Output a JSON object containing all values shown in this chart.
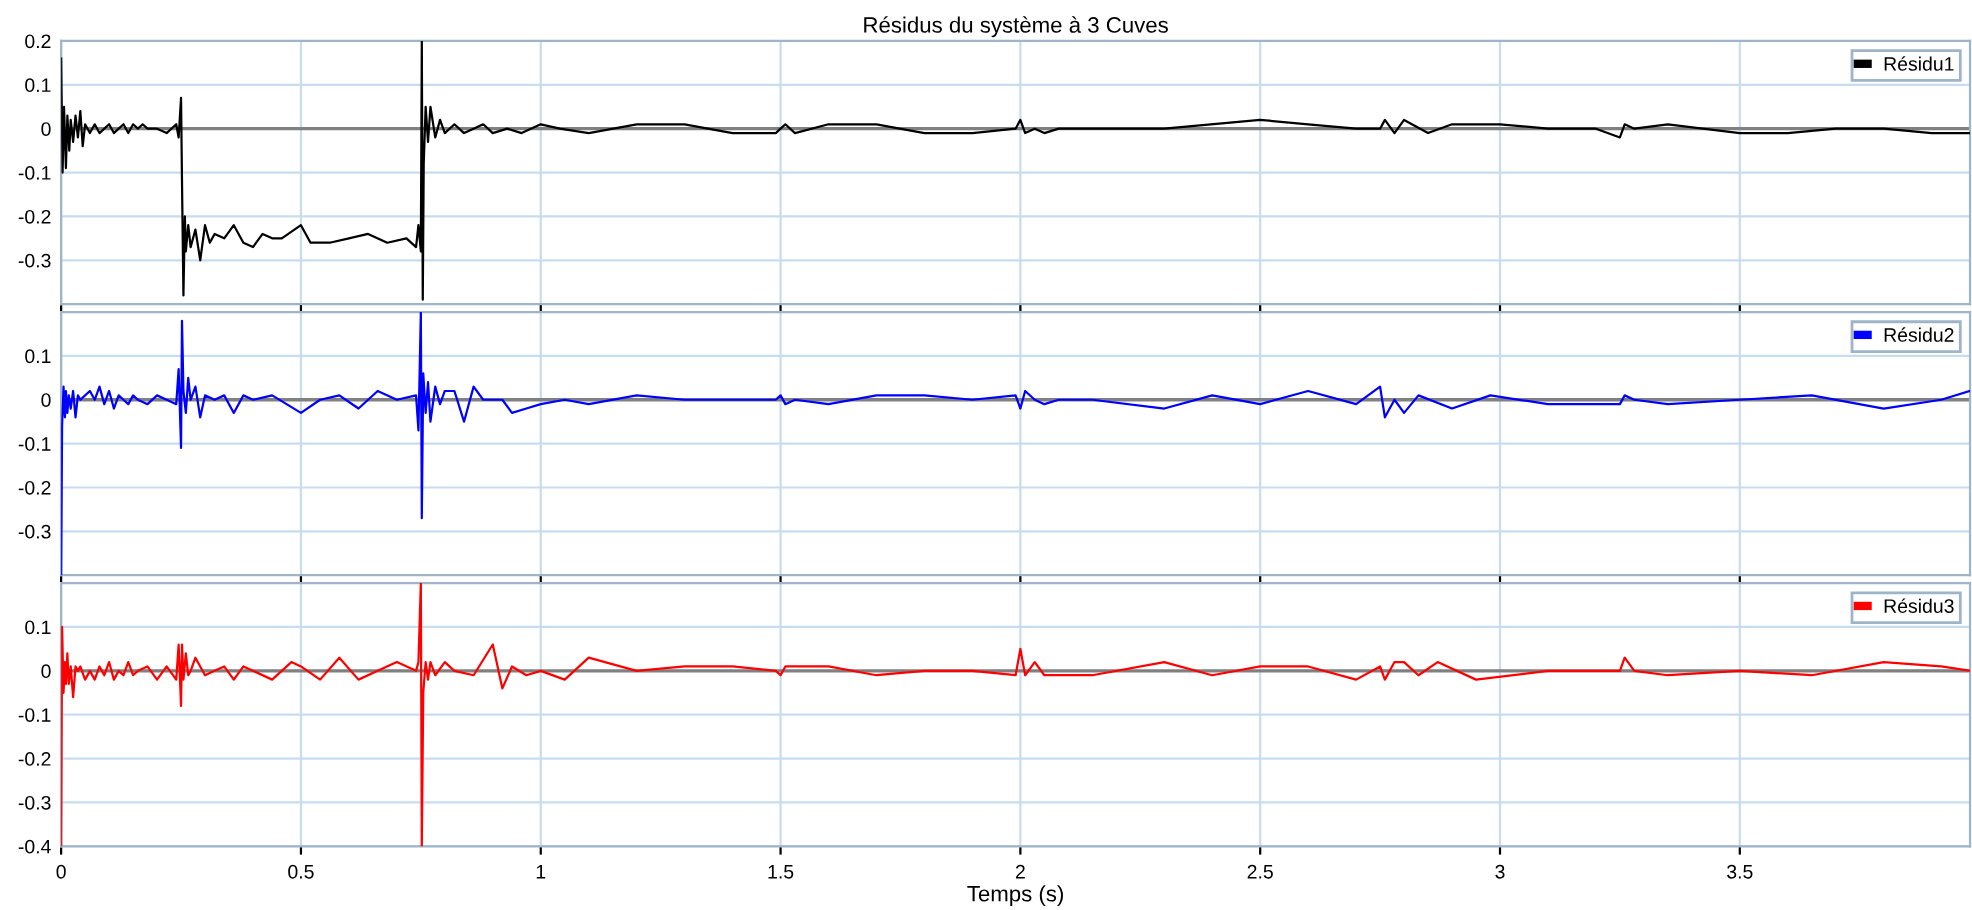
{
  "chart_data": [
    {
      "type": "line",
      "title": "Résidus du système à 3 Cuves",
      "xlim": [
        0,
        3.98
      ],
      "xticks": [
        0,
        0.5,
        1,
        1.5,
        2,
        2.5,
        3,
        3.5
      ],
      "ylim": [
        -0.4,
        0.2
      ],
      "yticks": [
        -0.3,
        -0.2,
        -0.1,
        0,
        0.1,
        0.2
      ],
      "tick_labels": "y",
      "grid": true,
      "legend": "top right",
      "ref_lines": [
        {
          "axis": "y",
          "value": 0,
          "color": "#808080"
        }
      ],
      "series": [
        {
          "name": "Résidu1",
          "color": "#000000",
          "x": [
            0,
            0.003,
            0.006,
            0.01,
            0.013,
            0.017,
            0.02,
            0.025,
            0.03,
            0.035,
            0.04,
            0.045,
            0.05,
            0.06,
            0.07,
            0.08,
            0.09,
            0.1,
            0.11,
            0.12,
            0.13,
            0.14,
            0.15,
            0.16,
            0.17,
            0.18,
            0.2,
            0.22,
            0.24,
            0.245,
            0.25,
            0.252,
            0.255,
            0.258,
            0.26,
            0.265,
            0.27,
            0.28,
            0.29,
            0.3,
            0.31,
            0.32,
            0.34,
            0.36,
            0.38,
            0.4,
            0.42,
            0.44,
            0.46,
            0.5,
            0.52,
            0.56,
            0.6,
            0.64,
            0.68,
            0.72,
            0.74,
            0.745,
            0.75,
            0.752,
            0.754,
            0.756,
            0.76,
            0.765,
            0.77,
            0.78,
            0.79,
            0.8,
            0.82,
            0.84,
            0.86,
            0.88,
            0.9,
            0.93,
            0.96,
            1.0,
            1.04,
            1.1,
            1.2,
            1.3,
            1.4,
            1.49,
            1.5,
            1.51,
            1.53,
            1.6,
            1.7,
            1.8,
            1.9,
            1.99,
            2.0,
            2.01,
            2.03,
            2.05,
            2.08,
            2.15,
            2.3,
            2.5,
            2.6,
            2.7,
            2.75,
            2.76,
            2.78,
            2.8,
            2.85,
            2.9,
            3.0,
            3.1,
            3.2,
            3.25,
            3.26,
            3.28,
            3.35,
            3.5,
            3.6,
            3.7,
            3.8,
            3.9,
            3.98
          ],
          "values": [
            0.16,
            -0.1,
            0.05,
            -0.09,
            0.03,
            -0.05,
            0.02,
            -0.03,
            0.03,
            -0.02,
            0.04,
            -0.04,
            0.01,
            -0.01,
            0.01,
            -0.01,
            0.0,
            0.01,
            -0.01,
            0.0,
            0.01,
            -0.01,
            0.01,
            0.0,
            0.01,
            0.0,
            0.0,
            -0.01,
            0.01,
            -0.02,
            0.07,
            -0.12,
            -0.38,
            -0.2,
            -0.28,
            -0.22,
            -0.27,
            -0.23,
            -0.3,
            -0.22,
            -0.26,
            -0.24,
            -0.25,
            -0.22,
            -0.26,
            -0.27,
            -0.24,
            -0.25,
            -0.25,
            -0.22,
            -0.26,
            -0.26,
            -0.25,
            -0.24,
            -0.26,
            -0.25,
            -0.27,
            -0.22,
            -0.28,
            0.2,
            -0.39,
            -0.08,
            0.05,
            -0.03,
            0.05,
            -0.02,
            0.02,
            -0.01,
            0.01,
            -0.01,
            0.0,
            0.01,
            -0.01,
            0.0,
            -0.01,
            0.01,
            0.0,
            -0.01,
            0.01,
            0.01,
            -0.01,
            -0.01,
            0.0,
            0.01,
            -0.01,
            0.01,
            0.01,
            -0.01,
            -0.01,
            0.0,
            0.02,
            -0.01,
            0.0,
            -0.01,
            0.0,
            0.0,
            0.0,
            0.02,
            0.01,
            0.0,
            0.0,
            0.02,
            -0.01,
            0.02,
            -0.01,
            0.01,
            0.01,
            0.0,
            0.0,
            -0.02,
            0.01,
            0.0,
            0.01,
            -0.01,
            -0.01,
            0.0,
            0.0,
            -0.01,
            -0.01
          ]
        }
      ]
    },
    {
      "type": "line",
      "xlim": [
        0,
        3.98
      ],
      "xticks": [
        0,
        0.5,
        1,
        1.5,
        2,
        2.5,
        3,
        3.5
      ],
      "ylim": [
        -0.4,
        0.2
      ],
      "yticks": [
        -0.3,
        -0.2,
        -0.1,
        0,
        0.1
      ],
      "tick_labels": "y",
      "grid": true,
      "legend": "top right",
      "ref_lines": [
        {
          "axis": "y",
          "value": 0,
          "color": "#808080"
        }
      ],
      "series": [
        {
          "name": "Résidu2",
          "color": "#0000ff",
          "x": [
            0,
            0.002,
            0.005,
            0.008,
            0.01,
            0.013,
            0.016,
            0.02,
            0.025,
            0.03,
            0.035,
            0.04,
            0.05,
            0.06,
            0.07,
            0.08,
            0.09,
            0.1,
            0.11,
            0.12,
            0.13,
            0.14,
            0.15,
            0.16,
            0.18,
            0.2,
            0.22,
            0.24,
            0.245,
            0.25,
            0.252,
            0.255,
            0.26,
            0.265,
            0.27,
            0.28,
            0.29,
            0.3,
            0.32,
            0.34,
            0.36,
            0.38,
            0.4,
            0.44,
            0.5,
            0.54,
            0.58,
            0.62,
            0.66,
            0.7,
            0.74,
            0.745,
            0.75,
            0.752,
            0.755,
            0.76,
            0.765,
            0.77,
            0.78,
            0.79,
            0.8,
            0.82,
            0.84,
            0.86,
            0.88,
            0.9,
            0.92,
            0.94,
            0.97,
            1.0,
            1.05,
            1.1,
            1.2,
            1.3,
            1.4,
            1.49,
            1.5,
            1.51,
            1.53,
            1.6,
            1.7,
            1.8,
            1.9,
            1.99,
            2.0,
            2.01,
            2.03,
            2.05,
            2.08,
            2.15,
            2.3,
            2.4,
            2.5,
            2.6,
            2.7,
            2.75,
            2.76,
            2.78,
            2.8,
            2.83,
            2.9,
            2.98,
            3.1,
            3.25,
            3.26,
            3.28,
            3.35,
            3.5,
            3.65,
            3.8,
            3.92,
            3.98
          ],
          "values": [
            -0.4,
            -0.06,
            0.03,
            -0.04,
            0.02,
            -0.03,
            0.01,
            -0.02,
            0.02,
            -0.04,
            0.01,
            0.0,
            0.01,
            0.02,
            0.0,
            0.03,
            -0.01,
            0.02,
            -0.02,
            0.01,
            0.0,
            -0.01,
            0.01,
            0.0,
            -0.01,
            0.01,
            0.0,
            -0.01,
            0.07,
            -0.11,
            0.18,
            0.02,
            -0.03,
            0.05,
            0.0,
            0.03,
            -0.04,
            0.01,
            0.0,
            0.01,
            -0.03,
            0.01,
            0.0,
            0.01,
            -0.03,
            0.0,
            0.01,
            -0.02,
            0.02,
            0.0,
            0.01,
            -0.07,
            0.2,
            -0.27,
            0.06,
            -0.03,
            0.04,
            -0.05,
            0.03,
            -0.01,
            0.02,
            0.02,
            -0.05,
            0.03,
            0.0,
            0.0,
            0.0,
            -0.03,
            -0.02,
            -0.01,
            0.0,
            -0.01,
            0.01,
            0.0,
            0.0,
            0.0,
            0.01,
            -0.01,
            0.0,
            -0.01,
            0.01,
            0.01,
            0.0,
            0.01,
            -0.02,
            0.02,
            0.0,
            -0.01,
            0.0,
            0.0,
            -0.02,
            0.01,
            -0.01,
            0.02,
            -0.01,
            0.03,
            -0.04,
            0.0,
            -0.03,
            0.01,
            -0.02,
            0.01,
            -0.01,
            -0.01,
            0.01,
            0.0,
            -0.01,
            0.0,
            0.01,
            -0.02,
            0.0,
            0.02
          ]
        }
      ]
    },
    {
      "type": "line",
      "xlabel": "Temps (s)",
      "xlim": [
        0,
        3.98
      ],
      "xticks": [
        0,
        0.5,
        1,
        1.5,
        2,
        2.5,
        3,
        3.5
      ],
      "ylim": [
        -0.4,
        0.2
      ],
      "yticks": [
        -0.4,
        -0.3,
        -0.2,
        -0.1,
        0,
        0.1
      ],
      "grid": true,
      "legend": "top right",
      "ref_lines": [
        {
          "axis": "y",
          "value": 0,
          "color": "#808080"
        }
      ],
      "series": [
        {
          "name": "Résidu3",
          "color": "#ff0000",
          "x": [
            0,
            0.002,
            0.005,
            0.008,
            0.01,
            0.013,
            0.016,
            0.02,
            0.025,
            0.03,
            0.035,
            0.04,
            0.05,
            0.06,
            0.07,
            0.08,
            0.09,
            0.1,
            0.11,
            0.12,
            0.13,
            0.14,
            0.15,
            0.16,
            0.18,
            0.2,
            0.22,
            0.24,
            0.245,
            0.25,
            0.252,
            0.255,
            0.26,
            0.265,
            0.27,
            0.28,
            0.3,
            0.32,
            0.34,
            0.36,
            0.38,
            0.4,
            0.44,
            0.48,
            0.5,
            0.54,
            0.58,
            0.62,
            0.66,
            0.7,
            0.74,
            0.745,
            0.75,
            0.752,
            0.755,
            0.76,
            0.765,
            0.77,
            0.78,
            0.8,
            0.82,
            0.86,
            0.9,
            0.92,
            0.94,
            0.97,
            1.0,
            1.05,
            1.1,
            1.2,
            1.3,
            1.4,
            1.49,
            1.5,
            1.51,
            1.53,
            1.6,
            1.7,
            1.8,
            1.9,
            1.99,
            2.0,
            2.01,
            2.03,
            2.05,
            2.08,
            2.15,
            2.3,
            2.4,
            2.5,
            2.6,
            2.7,
            2.75,
            2.76,
            2.78,
            2.8,
            2.83,
            2.87,
            2.95,
            3.1,
            3.25,
            3.26,
            3.28,
            3.35,
            3.5,
            3.65,
            3.8,
            3.92,
            3.98
          ],
          "values": [
            -0.4,
            0.1,
            -0.05,
            0.02,
            -0.03,
            0.04,
            -0.03,
            0.01,
            -0.06,
            0.01,
            0.0,
            0.01,
            -0.02,
            0.0,
            -0.02,
            0.01,
            -0.01,
            0.02,
            -0.02,
            0.0,
            -0.01,
            0.02,
            -0.01,
            0.0,
            0.01,
            -0.02,
            0.01,
            -0.02,
            0.06,
            -0.08,
            0.06,
            -0.02,
            0.04,
            -0.01,
            0.0,
            0.03,
            -0.01,
            0.0,
            0.01,
            -0.02,
            0.01,
            0.0,
            -0.02,
            0.02,
            0.01,
            -0.02,
            0.03,
            -0.02,
            0.0,
            0.02,
            0.0,
            0.02,
            0.2,
            -0.4,
            -0.05,
            0.02,
            -0.02,
            0.02,
            -0.01,
            0.02,
            0.0,
            -0.01,
            0.06,
            -0.04,
            0.01,
            -0.01,
            0.0,
            -0.02,
            0.03,
            0.0,
            0.01,
            0.01,
            0.0,
            -0.01,
            0.01,
            0.01,
            0.01,
            -0.01,
            0.0,
            0.0,
            -0.01,
            0.05,
            -0.01,
            0.02,
            -0.01,
            -0.01,
            -0.01,
            0.02,
            -0.01,
            0.01,
            0.01,
            -0.02,
            0.01,
            -0.02,
            0.02,
            0.02,
            -0.01,
            0.02,
            -0.02,
            0.0,
            0.0,
            0.03,
            0.0,
            -0.01,
            0.0,
            -0.01,
            0.02,
            0.01,
            0.0
          ]
        }
      ]
    }
  ]
}
